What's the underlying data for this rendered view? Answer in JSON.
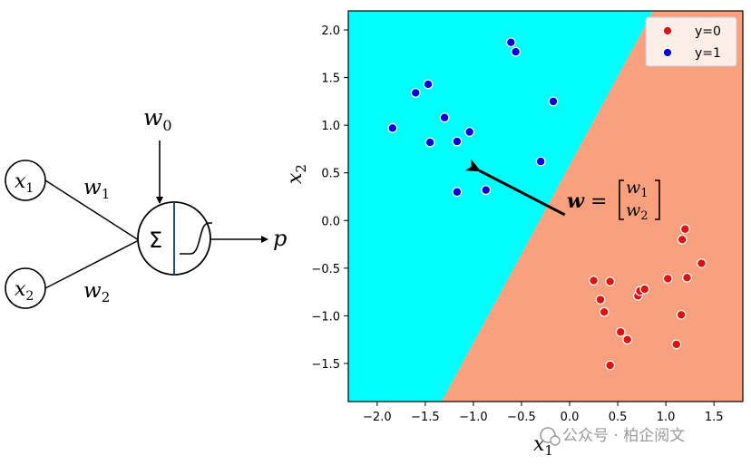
{
  "neuron": {
    "input1": {
      "base": "x",
      "sub": "1"
    },
    "input2": {
      "base": "x",
      "sub": "2"
    },
    "weight1": {
      "base": "w",
      "sub": "1"
    },
    "weight2": {
      "base": "w",
      "sub": "2"
    },
    "bias": {
      "base": "w",
      "sub": "0"
    },
    "sum_symbol": "Σ",
    "output": "p"
  },
  "annotation": {
    "lhs": "w",
    "equals": "=",
    "top": {
      "base": "w",
      "sub": "1"
    },
    "bottom": {
      "base": "w",
      "sub": "2"
    }
  },
  "watermark": "公众号 · 柏企阅文",
  "colors": {
    "region_class1": "#00ffff",
    "region_class0": "#f9a17e",
    "class0_point": "#e01010",
    "class1_point": "#0000dd",
    "neuron_divider": "#1f4e79"
  },
  "chart_data": {
    "type": "scatter",
    "title": "",
    "xlabel": {
      "base": "x",
      "sub": "1"
    },
    "ylabel": {
      "base": "x",
      "sub": "2"
    },
    "xlim": [
      -2.3,
      1.8
    ],
    "ylim": [
      -1.9,
      2.2
    ],
    "xticks": [
      -2.0,
      -1.5,
      -1.0,
      -0.5,
      0.0,
      0.5,
      1.0,
      1.5
    ],
    "yticks": [
      -1.5,
      -1.0,
      -0.5,
      0.0,
      0.5,
      1.0,
      1.5,
      2.0
    ],
    "grid": false,
    "legend_position": "top-right",
    "decision_boundary": {
      "x_at_bottom": -1.33,
      "x_at_top": 0.87,
      "y_bottom": -1.9,
      "y_top": 2.2
    },
    "weight_arrow": {
      "from": [
        -0.05,
        0.06
      ],
      "to": [
        -1.05,
        0.58
      ]
    },
    "series": [
      {
        "name": "y=0",
        "color": "#e01010",
        "points": [
          [
            0.25,
            -0.63
          ],
          [
            0.42,
            -0.64
          ],
          [
            0.32,
            -0.83
          ],
          [
            0.36,
            -0.96
          ],
          [
            0.42,
            -1.52
          ],
          [
            0.53,
            -1.17
          ],
          [
            0.6,
            -1.25
          ],
          [
            0.71,
            -0.79
          ],
          [
            0.73,
            -0.74
          ],
          [
            0.78,
            -0.72
          ],
          [
            1.02,
            -0.61
          ],
          [
            1.11,
            -1.3
          ],
          [
            1.16,
            -0.99
          ],
          [
            1.17,
            -0.2
          ],
          [
            1.2,
            -0.09
          ],
          [
            1.22,
            -0.6
          ],
          [
            1.37,
            -0.45
          ]
        ]
      },
      {
        "name": "y=1",
        "color": "#0000dd",
        "points": [
          [
            -1.84,
            0.97
          ],
          [
            -1.6,
            1.34
          ],
          [
            -1.47,
            1.43
          ],
          [
            -1.45,
            0.82
          ],
          [
            -1.3,
            1.08
          ],
          [
            -1.17,
            0.83
          ],
          [
            -1.17,
            0.3
          ],
          [
            -1.04,
            0.93
          ],
          [
            -0.87,
            0.32
          ],
          [
            -0.61,
            1.87
          ],
          [
            -0.56,
            1.77
          ],
          [
            -0.3,
            0.62
          ],
          [
            -0.17,
            1.25
          ]
        ]
      }
    ]
  }
}
